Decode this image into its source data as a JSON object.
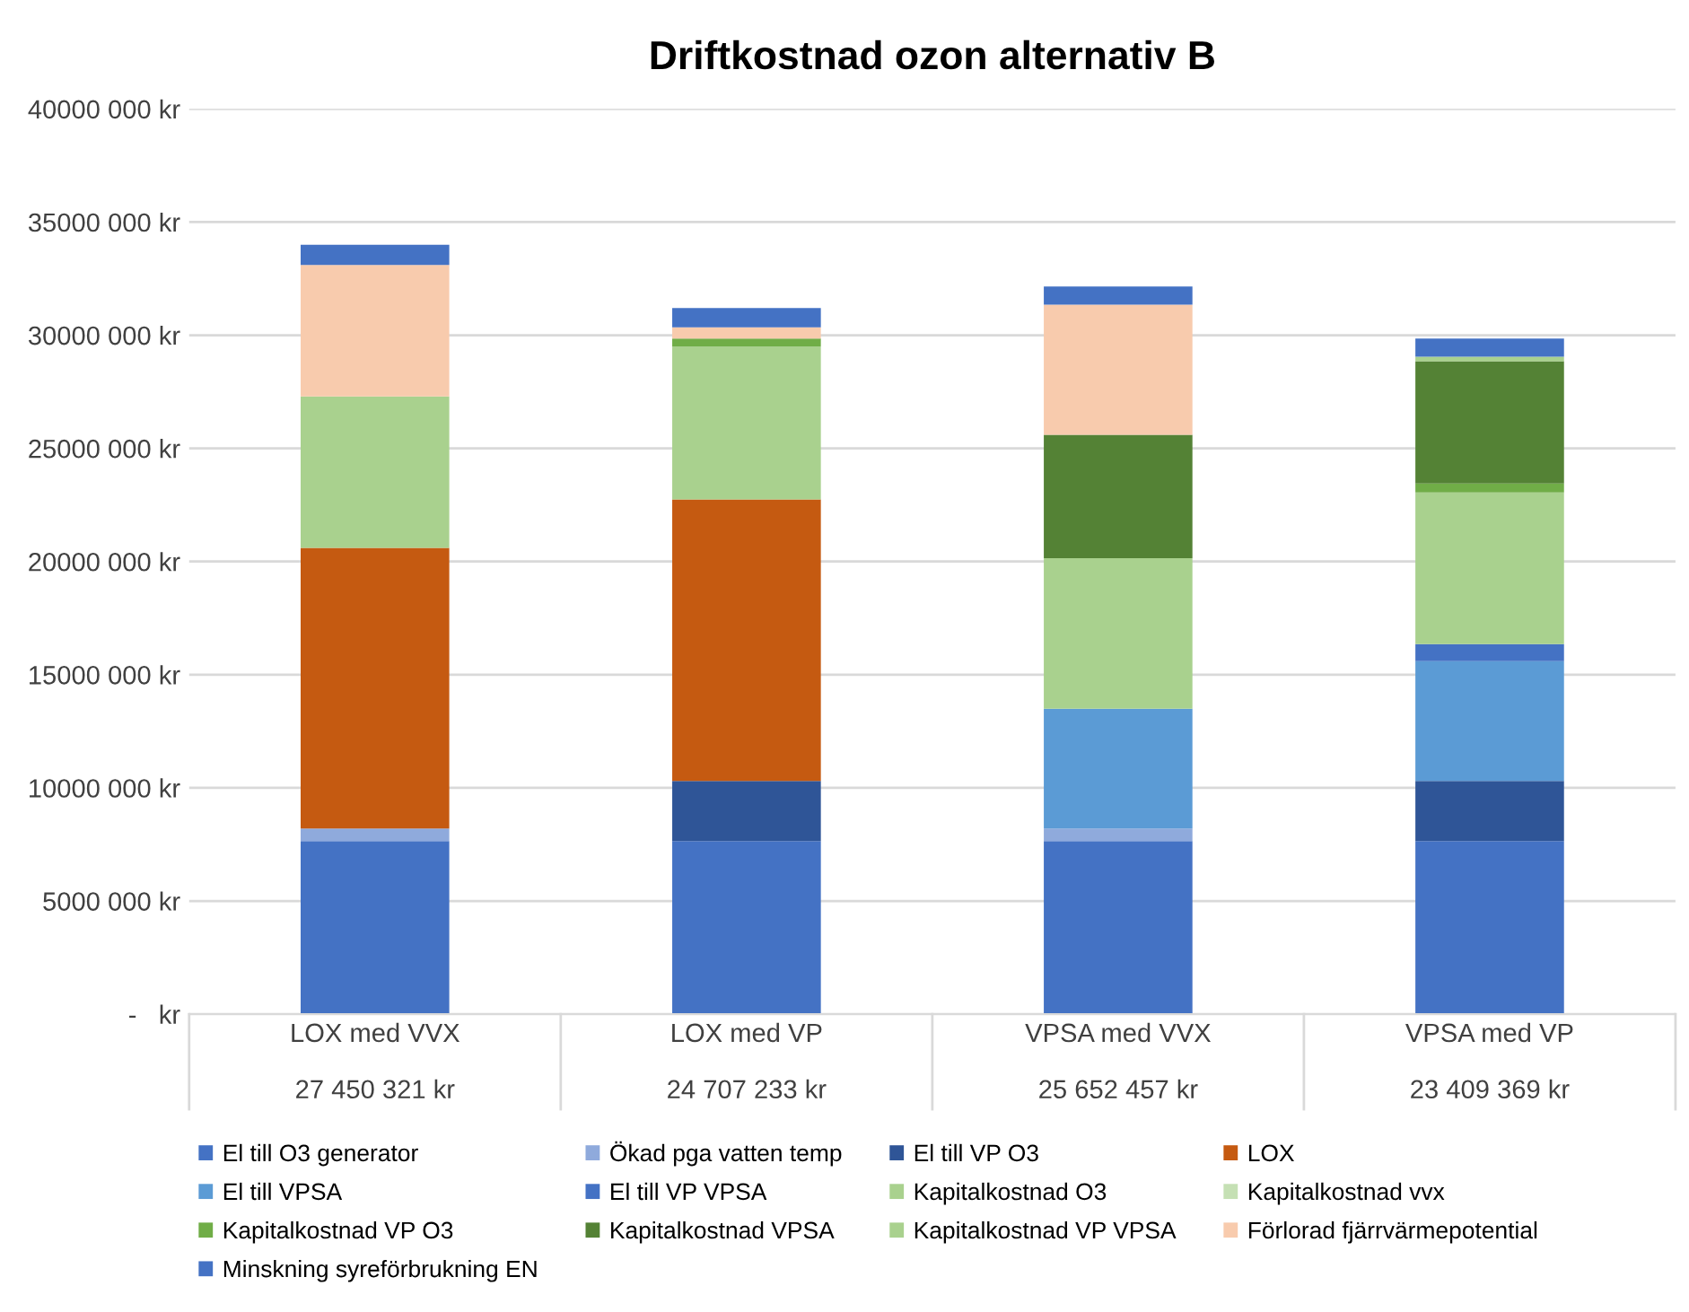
{
  "chart_data": {
    "type": "bar",
    "title": "Driftkostnad ozon alternativ B",
    "stacked": true,
    "categories": [
      "LOX med VVX\n\n27 450 321 kr",
      "LOX med VP\n\n24 707 233 kr",
      "VPSA med VVX\n\n25 652 457 kr",
      "VPSA med VP\n\n23 409 369 kr"
    ],
    "ylim": [
      0,
      40000000
    ],
    "yticks": [
      {
        "value": 0,
        "label": "-   kr"
      },
      {
        "value": 5000000,
        "label": "5000 000 kr"
      },
      {
        "value": 10000000,
        "label": "10000 000 kr"
      },
      {
        "value": 15000000,
        "label": "15000 000 kr"
      },
      {
        "value": 20000000,
        "label": "20000 000 kr"
      },
      {
        "value": 25000000,
        "label": "25000 000 kr"
      },
      {
        "value": 30000000,
        "label": "30000 000 kr"
      },
      {
        "value": 35000000,
        "label": "35000 000 kr"
      },
      {
        "value": 40000000,
        "label": "40000 000 kr"
      }
    ],
    "grid": "y",
    "legend": "bottom",
    "series": [
      {
        "name": "El till O3 generator",
        "color": "#4472c4",
        "values": [
          7650000,
          7650000,
          7650000,
          7650000
        ]
      },
      {
        "name": "Ökad pga vatten temp",
        "color": "#8faadc",
        "values": [
          550000,
          null,
          550000,
          null
        ]
      },
      {
        "name": "El till VP O3",
        "color": "#2f5597",
        "values": [
          null,
          2650000,
          null,
          2650000
        ]
      },
      {
        "name": "LOX",
        "color": "#c55a11",
        "values": [
          12400000,
          12450000,
          null,
          null
        ]
      },
      {
        "name": "El till VPSA",
        "color": "#5b9bd5",
        "values": [
          null,
          null,
          5300000,
          5300000
        ]
      },
      {
        "name": "El till VP VPSA",
        "color": "#4472c4",
        "values": [
          null,
          null,
          null,
          750000
        ]
      },
      {
        "name": "Kapitalkostnad O3",
        "color": "#a9d18e",
        "values": [
          6700000,
          6750000,
          6650000,
          6700000
        ]
      },
      {
        "name": "Kapitalkostnad vvx",
        "color": "#c5e0b4",
        "values": [
          null,
          null,
          null,
          null
        ]
      },
      {
        "name": "Kapitalkostnad VP O3",
        "color": "#70ad47",
        "values": [
          null,
          350000,
          null,
          400000
        ]
      },
      {
        "name": "Kapitalkostnad VPSA",
        "color": "#548235",
        "values": [
          null,
          null,
          5450000,
          5400000
        ]
      },
      {
        "name": "Kapitalkostnad VP VPSA",
        "color": "#a9d18e",
        "values": [
          null,
          null,
          null,
          200000
        ]
      },
      {
        "name": "Förlorad fjärrvärmepotential",
        "color": "#f8cbad",
        "values": [
          5800000,
          500000,
          5750000,
          null
        ]
      },
      {
        "name": "Minskning syreförbrukning EN",
        "color": "#4472c4",
        "values": [
          900000,
          850000,
          800000,
          800000
        ]
      }
    ]
  }
}
